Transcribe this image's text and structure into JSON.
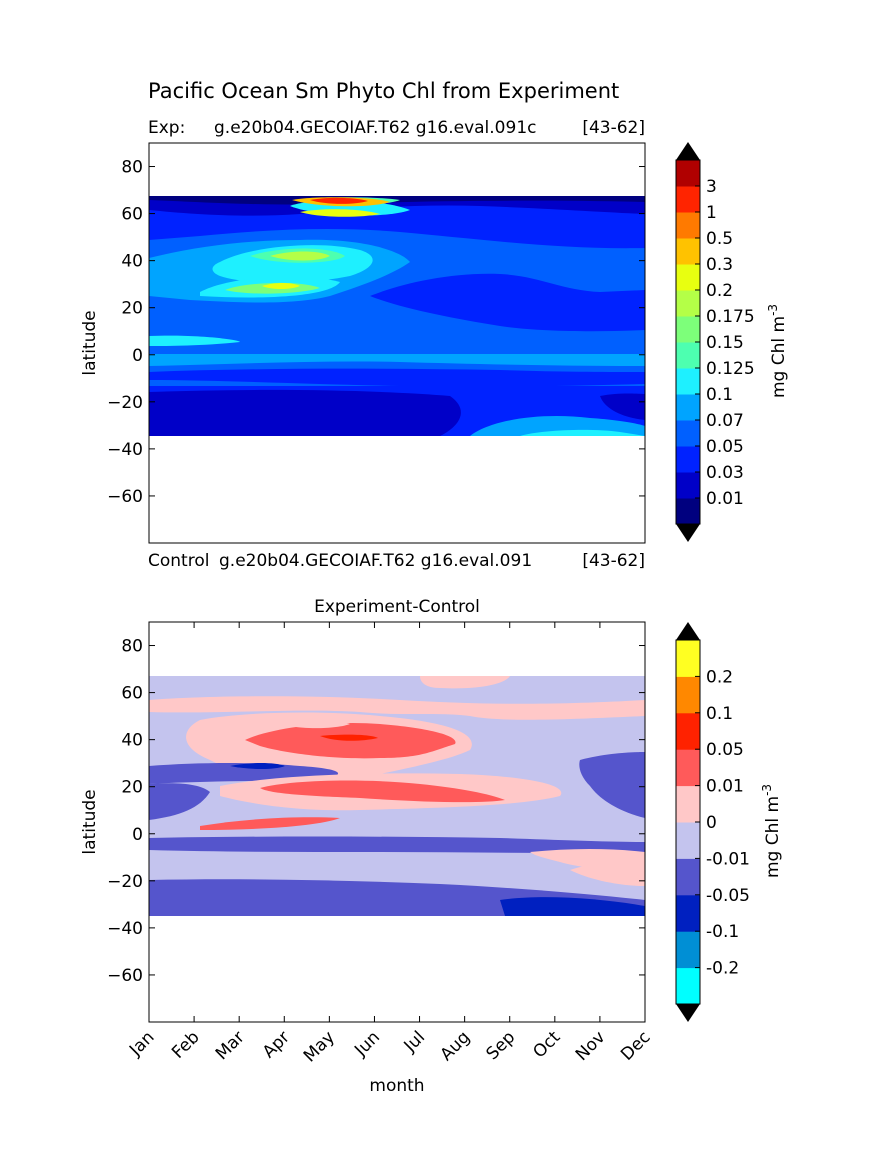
{
  "figure": {
    "title": "Pacific Ocean Sm Phyto Chl from Experiment",
    "exp_label": "Exp:",
    "exp_name": "g.e20b04.GECOIAF.T62 g16.eval.091c",
    "exp_range": "[43-62]",
    "control_label": "Control",
    "control_name": "g.e20b04.GECOIAF.T62 g16.eval.091",
    "control_range": "[43-62]",
    "diff_title": "Experiment-Control"
  },
  "chart_data": [
    {
      "type": "heatmap",
      "title": "Pacific Ocean Sm Phyto Chl from Experiment",
      "ylabel": "latitude",
      "xlabel": "",
      "ylim": [
        -80,
        90
      ],
      "yticks": [
        80,
        60,
        40,
        20,
        0,
        -20,
        -40,
        -60
      ],
      "data_lat_range": [
        -34,
        67
      ],
      "colorbar": {
        "label": "mg Chl m",
        "label_exp": "-3",
        "levels": [
          "0.01",
          "0.03",
          "0.05",
          "0.07",
          "0.1",
          "0.125",
          "0.15",
          "0.175",
          "0.2",
          "0.3",
          "0.5",
          "1",
          "3"
        ],
        "colors": [
          "#00007f",
          "#0000c8",
          "#0022ff",
          "#0060ff",
          "#00a4ff",
          "#1ef0ff",
          "#4dffb0",
          "#7dff7a",
          "#b4ff47",
          "#e8ff10",
          "#ffc200",
          "#ff7a00",
          "#ff2400",
          "#b00000"
        ],
        "extend_colors": [
          "#000000",
          "#000000"
        ]
      }
    },
    {
      "type": "heatmap",
      "title": "Experiment-Control",
      "ylabel": "latitude",
      "xlabel": "month",
      "months": [
        "Jan",
        "Feb",
        "Mar",
        "Apr",
        "May",
        "Jun",
        "Jul",
        "Aug",
        "Sep",
        "Oct",
        "Nov",
        "Dec"
      ],
      "ylim": [
        -80,
        90
      ],
      "yticks": [
        80,
        60,
        40,
        20,
        0,
        -20,
        -40,
        -60
      ],
      "data_lat_range": [
        -34,
        67
      ],
      "colorbar": {
        "label": "mg Chl m",
        "label_exp": "-3",
        "levels": [
          "-0.2",
          "-0.1",
          "-0.05",
          "-0.01",
          "0",
          "0.01",
          "0.05",
          "0.1",
          "0.2"
        ],
        "colors": [
          "#00ffff",
          "#008fd5",
          "#0020c0",
          "#5555cc",
          "#c4c4ee",
          "#ffc8c8",
          "#ff5a5a",
          "#ff2200",
          "#ff8800",
          "#ffff22"
        ],
        "extend_colors": [
          "#000000",
          "#000000"
        ]
      }
    }
  ]
}
